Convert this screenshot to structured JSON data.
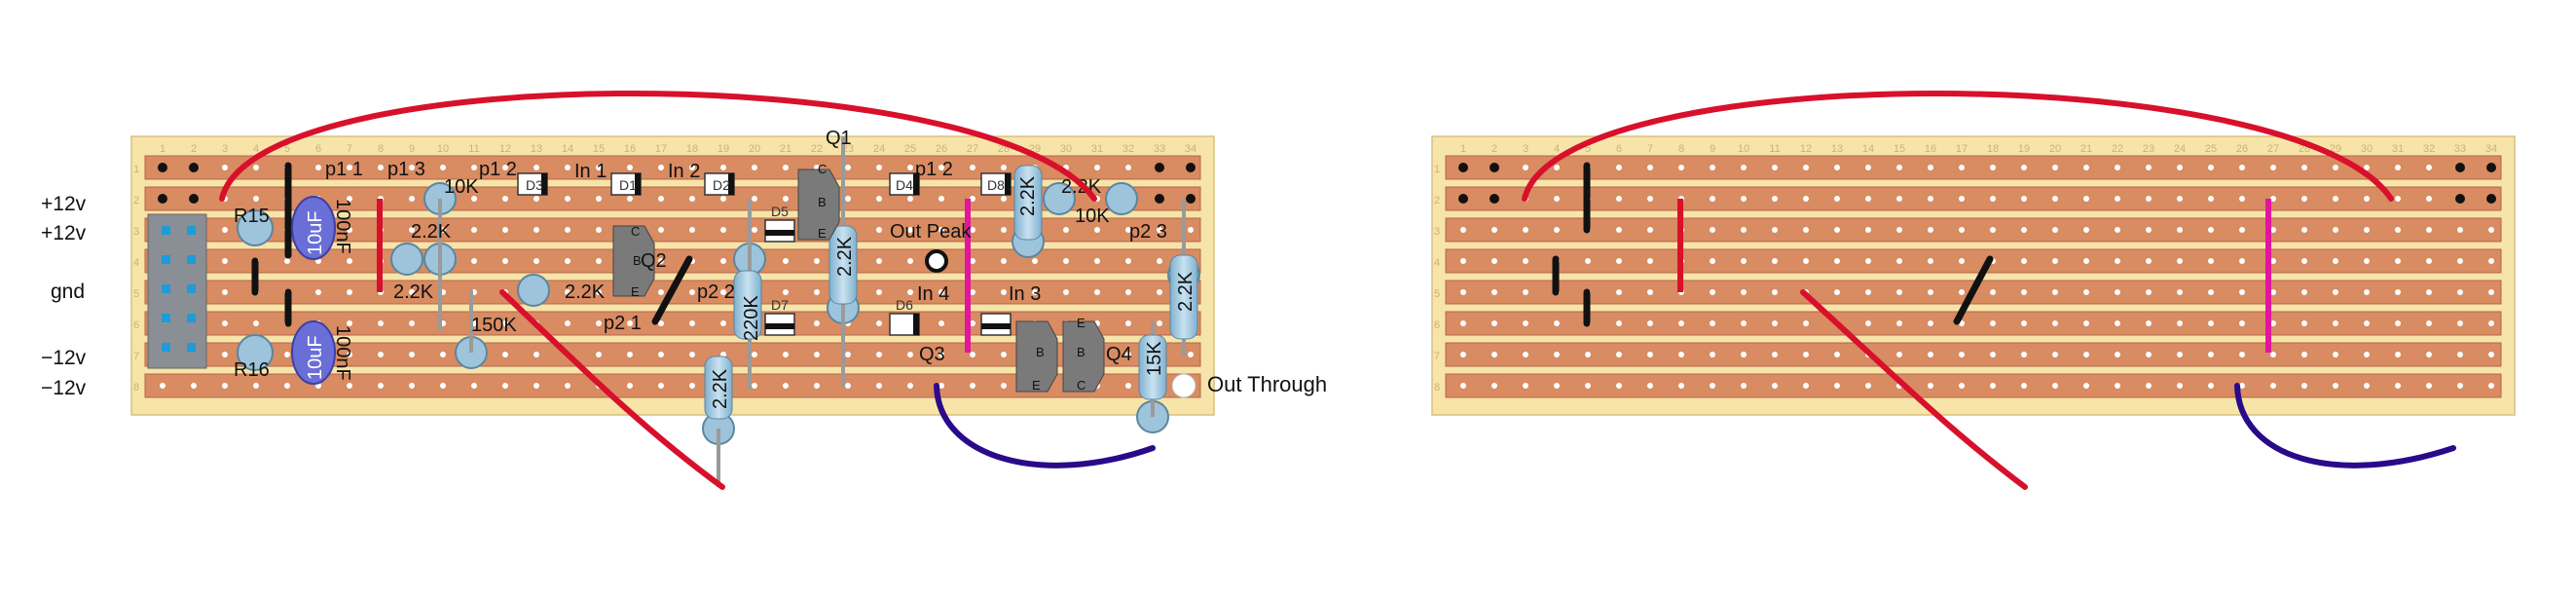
{
  "left_board": {
    "column_numbers": [
      "1",
      "2",
      "3",
      "4",
      "5",
      "6",
      "7",
      "8",
      "9",
      "10",
      "11",
      "12",
      "13",
      "14",
      "15",
      "16",
      "17",
      "18",
      "19",
      "20",
      "21",
      "22",
      "23",
      "24",
      "25",
      "26",
      "27",
      "28",
      "29",
      "30",
      "31",
      "32",
      "33",
      "34"
    ],
    "row_numbers": [
      "1",
      "2",
      "3",
      "4",
      "5",
      "6",
      "7",
      "8"
    ],
    "rail_labels": [
      "+12v",
      "+12v",
      "gnd",
      "−12v",
      "−12v"
    ],
    "output_label": "Out Through",
    "component_labels": {
      "r15": "R15",
      "r16": "R16",
      "cap_top": "10uF",
      "cap_bottom": "10uF",
      "cap_100n_top": "100nF",
      "cap_100n_bottom": "100nF",
      "p1_1": "p1 1",
      "p1_3": "p1 3",
      "p1_2a": "p1 2",
      "in1": "In 1",
      "in2": "In 2",
      "q1": "Q1",
      "q2": "Q2",
      "q3": "Q3",
      "q4": "Q4",
      "r10k_a": "10K",
      "r22k_a": "2.2K",
      "r22k_b": "2.2K",
      "r22k_c": "2.2K",
      "r150k": "150K",
      "p2_2": "p2 2",
      "p2_1": "p2 1",
      "r220k": "220K",
      "r22k_vert1": "2.2K",
      "r22k_vert2": "2.2K",
      "out_peak": "Out Peak",
      "in4": "In 4",
      "in3": "In 3",
      "p1_2b": "p1 2",
      "r22k_top": "2.2K",
      "r10k_b": "10K",
      "p2_3": "p2 3",
      "r22k_right": "2.2K",
      "r15k": "15K",
      "d3": "D3",
      "d1": "D1",
      "d2": "D2",
      "d4": "D4",
      "d8": "D8",
      "d5": "D5",
      "d6": "D6",
      "d7": "D7",
      "pin_b": "B",
      "pin_c": "C",
      "pin_e": "E"
    }
  },
  "right_board": {
    "column_numbers": [
      "1",
      "2",
      "3",
      "4",
      "5",
      "6",
      "7",
      "8",
      "9",
      "10",
      "11",
      "12",
      "13",
      "14",
      "15",
      "16",
      "17",
      "18",
      "19",
      "20",
      "21",
      "22",
      "23",
      "24",
      "25",
      "26",
      "27",
      "28",
      "29",
      "30",
      "31",
      "32",
      "33",
      "34"
    ],
    "row_numbers": [
      "1",
      "2",
      "3",
      "4",
      "5",
      "6",
      "7",
      "8"
    ]
  },
  "colors": {
    "board": "#f7e4a8",
    "strip": "#d98b62",
    "strip_edge": "#b5664a",
    "jumper_red": "#d8102c",
    "jumper_black": "#111111",
    "wire_blue": "#2a0a8a",
    "link_pink": "#e0169e",
    "capacitor": "#6a6fd8",
    "resistor_body": "#9ec4dc",
    "transistor": "#7a7a7a",
    "header": "#8a8f96",
    "header_pin": "#1e9bd8"
  }
}
